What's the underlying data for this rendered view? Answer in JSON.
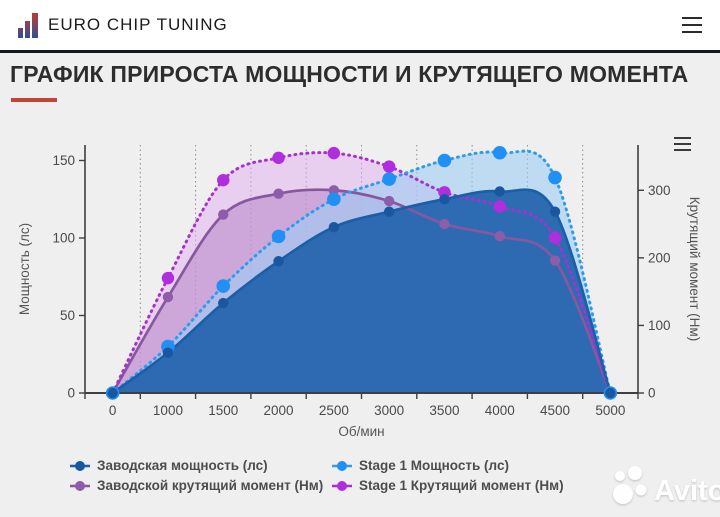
{
  "header": {
    "brand": "EURO CHIP TUNING",
    "logo_colors": {
      "top": "#c0392b",
      "bottom": "#2b4e96"
    }
  },
  "page": {
    "title": "ГРАФИК ПРИРОСТА МОЩНОСТИ И КРУТЯЩЕГО МОМЕНТА",
    "accent_color": "#bf4538"
  },
  "watermark": {
    "text": "Avito"
  },
  "chart_data": {
    "type": "area",
    "categories": [
      "0",
      "1000",
      "1500",
      "2000",
      "2500",
      "3000",
      "3500",
      "4000",
      "4500",
      "5000"
    ],
    "xlabel": "Об/мин",
    "ylabel_left": "Мощность (лс)",
    "ylabel_right": "Крутящий момент (Нм)",
    "yticks_left": [
      0,
      50,
      100,
      150
    ],
    "yticks_right": [
      0,
      100,
      200,
      300
    ],
    "ylim_left": [
      0,
      160
    ],
    "ylim_right": [
      0,
      367
    ],
    "grid": "vertical-dotted-between-categories",
    "legend_position": "bottom",
    "series": [
      {
        "name": "Заводская мощность (лс)",
        "axis": "left",
        "style": "solid",
        "color": "#1a5fa8",
        "fill": "#2263ad",
        "fill_opacity": 0.93,
        "marker_color": "#1a57a0",
        "marker_radius": 5.2,
        "values": [
          0,
          26,
          58,
          85,
          107,
          117,
          125,
          130,
          117,
          0
        ]
      },
      {
        "name": "Stage 1 Мощность (лс)",
        "axis": "left",
        "style": "dotted",
        "color": "#2f9bef",
        "fill": "#9ccdf3",
        "fill_opacity": 0.6,
        "marker_color": "#2090f2",
        "marker_radius": 6.8,
        "values": [
          0,
          30,
          69,
          101,
          125,
          138,
          150,
          155,
          139,
          0
        ]
      },
      {
        "name": "Заводской крутящий момент (Нм)",
        "axis": "right",
        "style": "solid",
        "color": "#86589f",
        "fill": "#b27fc6",
        "fill_opacity": 0.5,
        "marker_color": "#8d5da8",
        "marker_radius": 5.2,
        "values": [
          0,
          142,
          264,
          295,
          300,
          284,
          250,
          232,
          196,
          0
        ]
      },
      {
        "name": "Stage 1 Крутящий момент (Нм)",
        "axis": "right",
        "style": "dotted",
        "color": "#aa2fd0",
        "fill": "#e2aff0",
        "fill_opacity": 0.5,
        "marker_color": "#b02ede",
        "marker_radius": 6.2,
        "values": [
          0,
          170,
          315,
          348,
          355,
          335,
          297,
          276,
          230,
          0
        ]
      }
    ]
  }
}
